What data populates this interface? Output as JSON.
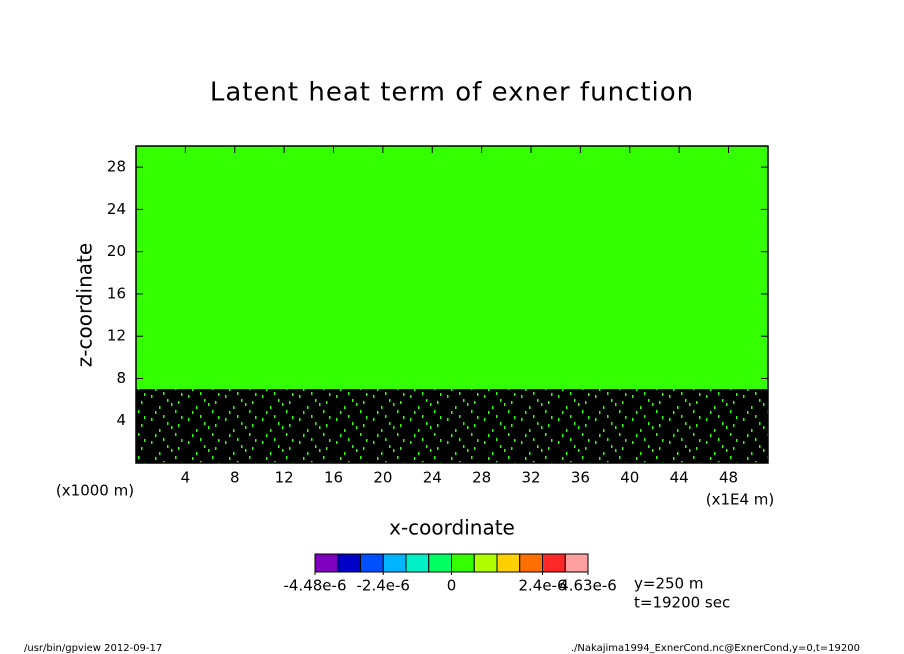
{
  "chart_data": {
    "type": "contour",
    "title": "Latent heat term of exner function",
    "xlabel": "x-coordinate",
    "ylabel": "z-coordinate",
    "x_unit": "(x1E4 m)",
    "y_unit": "(x1000 m)",
    "xlim": [
      0,
      51.2
    ],
    "ylim": [
      0,
      30
    ],
    "xticks": [
      4,
      8,
      12,
      16,
      20,
      24,
      28,
      32,
      36,
      40,
      44,
      48
    ],
    "yticks": [
      4,
      8,
      12,
      16,
      20,
      24,
      28
    ],
    "shading": [
      {
        "zmin": 7,
        "zmax": 30,
        "color": "#33ff00"
      },
      {
        "zmin": 0,
        "zmax": 7,
        "color": "#000000"
      }
    ],
    "colorbar": {
      "colors": [
        "#7f00bf",
        "#0000c8",
        "#0050ff",
        "#00b4ff",
        "#00f0c8",
        "#00ff60",
        "#33ff00",
        "#b0ff00",
        "#ffd000",
        "#ff7000",
        "#ff2828",
        "#ffa0a0"
      ],
      "ticks": [
        {
          "value": -4.48e-06,
          "label": "-4.48e-6"
        },
        {
          "value": -2.4e-06,
          "label": "-2.4e-6"
        },
        {
          "value": 0,
          "label": "0"
        },
        {
          "value": 2.4e-06,
          "label": "2.4e-6"
        },
        {
          "value": 4.63e-06,
          "label": "4.63e-6"
        }
      ]
    },
    "annotations": [
      "y=250 m",
      "t=19200 sec"
    ],
    "footer": [
      "/usr/bin/gpview  2012-09-17",
      "./Nakajima1994_ExnerCond.nc@ExnerCond,y=0,t=19200"
    ]
  }
}
